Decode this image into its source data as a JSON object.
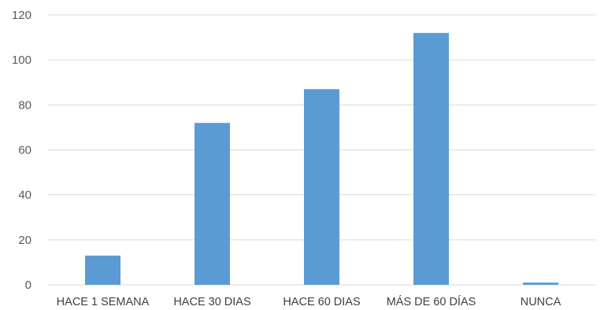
{
  "chart_data": {
    "type": "bar",
    "title": "",
    "xlabel": "",
    "ylabel": "",
    "categories": [
      "HACE 1 SEMANA",
      "HACE 30 DIAS",
      "HACE 60 DIAS",
      "MÁS DE 60 DÍAS",
      "NUNCA"
    ],
    "values": [
      13,
      72,
      87,
      112,
      1
    ],
    "ylim": [
      0,
      120
    ],
    "yticks": [
      "0",
      "20",
      "40",
      "60",
      "80",
      "100",
      "120"
    ],
    "grid": true,
    "legend": "none",
    "bar_color": "#5b9bd5"
  }
}
